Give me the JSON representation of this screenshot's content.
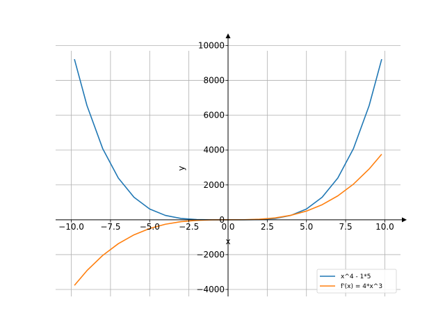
{
  "chart_data": {
    "type": "line",
    "title": "",
    "xlabel": "x",
    "ylabel": "y",
    "xlim": [
      -11,
      11
    ],
    "ylim": [
      -4400,
      10300
    ],
    "grid": true,
    "legend_position": "bottom-right",
    "x_ticks": [
      -10.0,
      -7.5,
      -5.0,
      -2.5,
      0.0,
      2.5,
      5.0,
      7.5,
      10.0
    ],
    "x_tick_labels": [
      "−10.0",
      "−7.5",
      "−5.0",
      "−2.5",
      "0.0",
      "2.5",
      "5.0",
      "7.5",
      "10.0"
    ],
    "y_ticks": [
      -4000,
      -2000,
      0,
      2000,
      4000,
      6000,
      8000,
      10000
    ],
    "y_tick_labels": [
      "−4000",
      "−2000",
      "0",
      "2000",
      "4000",
      "6000",
      "8000",
      "10000"
    ],
    "series": [
      {
        "name": "x^4 - 1*5",
        "color": "#1f77b4",
        "x": [
          -9.8,
          -9.0,
          -8.0,
          -7.0,
          -6.0,
          -5.0,
          -4.0,
          -3.0,
          -2.0,
          -1.0,
          0.0,
          1.0,
          2.0,
          3.0,
          4.0,
          5.0,
          6.0,
          7.0,
          8.0,
          9.0,
          9.8
        ],
        "y": [
          9219,
          6556,
          4091,
          2396,
          1291,
          620,
          251,
          76,
          11,
          -4,
          -5,
          -4,
          11,
          76,
          251,
          620,
          1291,
          2396,
          4091,
          6556,
          9219
        ]
      },
      {
        "name": "f'(x) = 4*x^3",
        "color": "#ff7f0e",
        "x": [
          -9.8,
          -9.0,
          -8.0,
          -7.0,
          -6.0,
          -5.0,
          -4.0,
          -3.0,
          -2.0,
          -1.0,
          0.0,
          1.0,
          2.0,
          3.0,
          4.0,
          5.0,
          6.0,
          7.0,
          8.0,
          9.0,
          9.8
        ],
        "y": [
          -3765,
          -2916,
          -2048,
          -1372,
          -864,
          -500,
          -256,
          -108,
          -32,
          -4,
          0,
          4,
          32,
          108,
          256,
          500,
          864,
          1372,
          2048,
          2916,
          3765
        ]
      }
    ]
  }
}
